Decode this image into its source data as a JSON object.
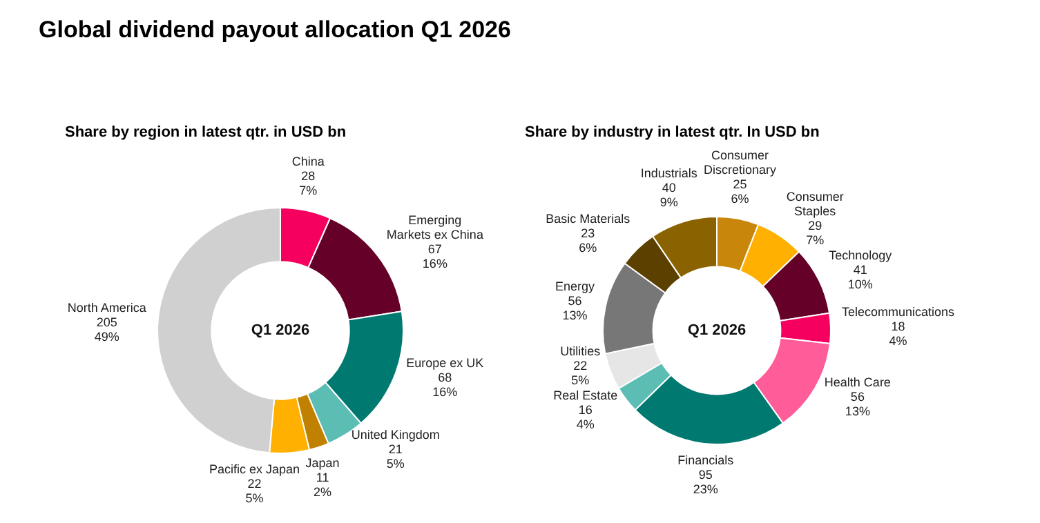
{
  "chart_data": [
    {
      "type": "donut",
      "title": "Global dividend payout allocation Q1 2026",
      "subtitle": "Share by region in latest qtr. in USD bn",
      "annotations": [
        "Q1 2026"
      ],
      "categories": [
        "China",
        "Emerging Markets ex China",
        "Europe ex UK",
        "United Kingdom",
        "Japan",
        "Pacific ex Japan",
        "North America"
      ],
      "values": [
        28,
        67,
        68,
        21,
        11,
        22,
        205
      ],
      "colors": [
        "#f5005f",
        "#650028",
        "#007a70",
        "#5bbdb4",
        "#c08000",
        "#ffb000",
        "#d0d0d0"
      ],
      "value_labels": [
        "28\n7%",
        "67\n16%",
        "68\n16%",
        "21\n5%",
        "11\n2%",
        "22\n5%",
        "205\n49%"
      ]
    },
    {
      "type": "donut",
      "subtitle": "Share by industry in latest qtr. In USD bn",
      "annotations": [
        "Q1 2026"
      ],
      "categories": [
        "Consumer Discretionary",
        "Consumer Staples",
        "Technology",
        "Telecommunications",
        "Health Care",
        "Financials",
        "Real Estate",
        "Utilities",
        "Energy",
        "Basic Materials",
        "Industrials"
      ],
      "values": [
        25,
        29,
        41,
        18,
        56,
        95,
        16,
        22,
        56,
        23,
        40
      ],
      "colors": [
        "#c8860a",
        "#ffb000",
        "#650028",
        "#f5005f",
        "#ff5c9a",
        "#007a70",
        "#5bbdb4",
        "#e6e6e6",
        "#777777",
        "#5c4000",
        "#8a6200"
      ],
      "value_labels": [
        "25\n6%",
        "29\n7%",
        "41\n10%",
        "18\n4%",
        "56\n13%",
        "95\n23%",
        "16\n4%",
        "22\n5%",
        "56\n13%",
        "23\n6%",
        "40\n9%"
      ]
    }
  ]
}
